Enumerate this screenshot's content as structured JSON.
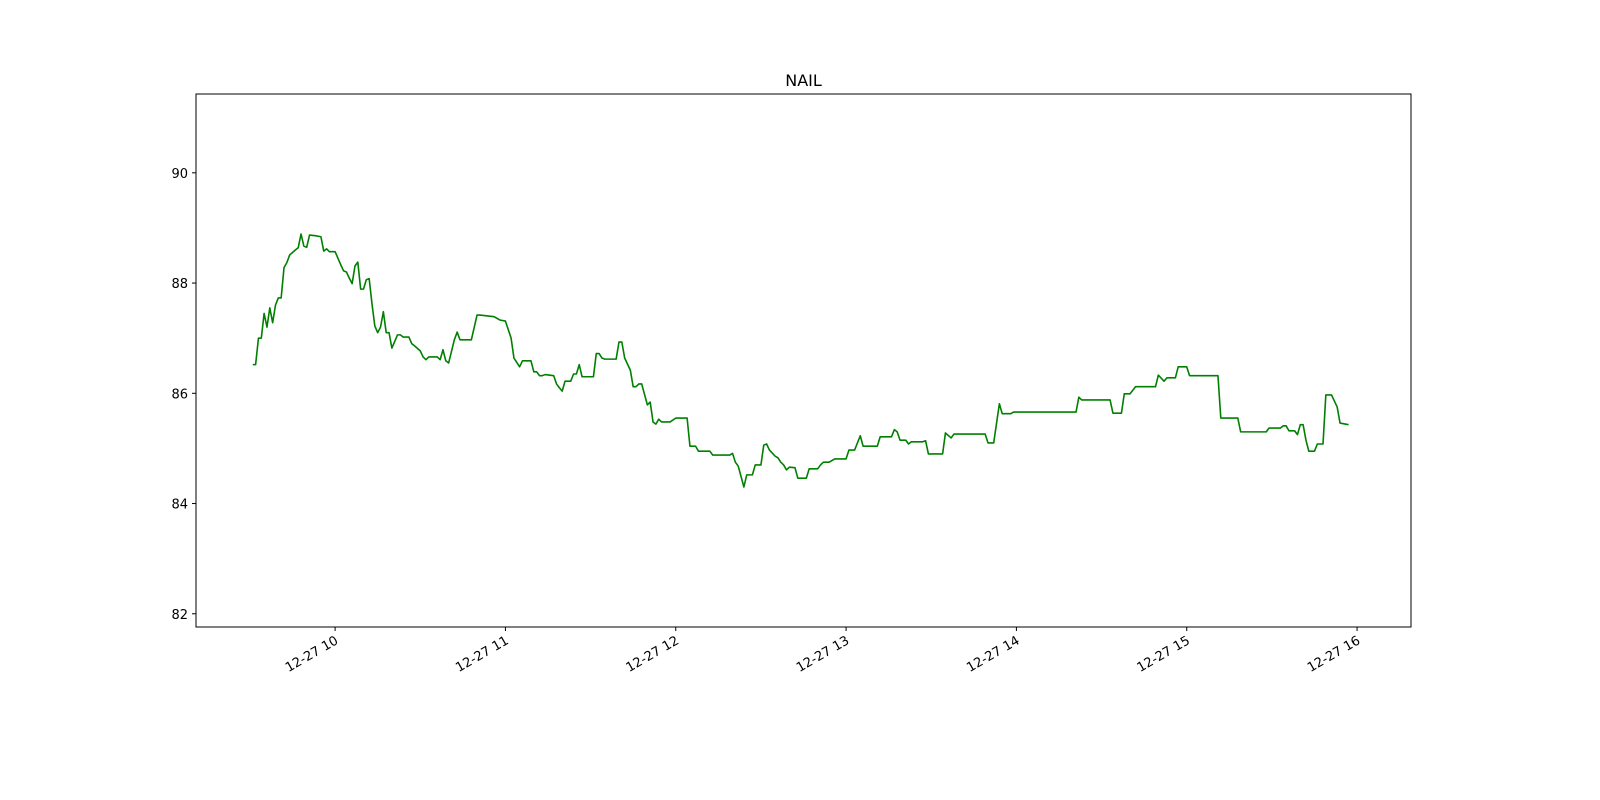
{
  "chart_data": {
    "type": "line",
    "title": "NAIL",
    "color": "green",
    "xlim": [
      "12-27 09:11",
      "12-27 16:19"
    ],
    "xticks": [
      "12-27 10",
      "12-27 11",
      "12-27 12",
      "12-27 13",
      "12-27 14",
      "12-27 15",
      "12-27 16"
    ],
    "ylim": [
      81.76,
      91.43
    ],
    "yticks": [
      82,
      84,
      86,
      88,
      90
    ],
    "grid": false,
    "x": [
      "12-27 09:31",
      "12-27 09:32",
      "12-27 09:33",
      "12-27 09:34",
      "12-27 09:35",
      "12-27 09:36",
      "12-27 09:37",
      "12-27 09:38",
      "12-27 09:39",
      "12-27 09:40",
      "12-27 09:41",
      "12-27 09:42",
      "12-27 09:43",
      "12-27 09:44",
      "12-27 09:46",
      "12-27 09:47",
      "12-27 09:48",
      "12-27 09:49",
      "12-27 09:50",
      "12-27 09:51",
      "12-27 09:53",
      "12-27 09:55",
      "12-27 09:56",
      "12-27 09:57",
      "12-27 09:58",
      "12-27 10:00",
      "12-27 10:02",
      "12-27 10:03",
      "12-27 10:04",
      "12-27 10:05",
      "12-27 10:06",
      "12-27 10:07",
      "12-27 10:08",
      "12-27 10:09",
      "12-27 10:10",
      "12-27 10:11",
      "12-27 10:12",
      "12-27 10:13",
      "12-27 10:14",
      "12-27 10:15",
      "12-27 10:16",
      "12-27 10:17",
      "12-27 10:18",
      "12-27 10:19",
      "12-27 10:20",
      "12-27 10:22",
      "12-27 10:23",
      "12-27 10:24",
      "12-27 10:26",
      "12-27 10:27",
      "12-27 10:28",
      "12-27 10:30",
      "12-27 10:31",
      "12-27 10:32",
      "12-27 10:33",
      "12-27 10:36",
      "12-27 10:37",
      "12-27 10:38",
      "12-27 10:39",
      "12-27 10:40",
      "12-27 10:42",
      "12-27 10:43",
      "12-27 10:44",
      "12-27 10:48",
      "12-27 10:50",
      "12-27 10:51",
      "12-27 10:56",
      "12-27 10:58",
      "12-27 11:00",
      "12-27 11:02",
      "12-27 11:03",
      "12-27 11:05",
      "12-27 11:06",
      "12-27 11:09",
      "12-27 11:10",
      "12-27 11:11",
      "12-27 11:12",
      "12-27 11:13",
      "12-27 11:14",
      "12-27 11:17",
      "12-27 11:18",
      "12-27 11:19",
      "12-27 11:20",
      "12-27 11:21",
      "12-27 11:23",
      "12-27 11:24",
      "12-27 11:25",
      "12-27 11:26",
      "12-27 11:27",
      "12-27 11:31",
      "12-27 11:32",
      "12-27 11:33",
      "12-27 11:34",
      "12-27 11:35",
      "12-27 11:39",
      "12-27 11:40",
      "12-27 11:41",
      "12-27 11:42",
      "12-27 11:44",
      "12-27 11:45",
      "12-27 11:46",
      "12-27 11:47",
      "12-27 11:48",
      "12-27 11:50",
      "12-27 11:51",
      "12-27 11:52",
      "12-27 11:53",
      "12-27 11:54",
      "12-27 11:55",
      "12-27 11:58",
      "12-27 12:00",
      "12-27 12:04",
      "12-27 12:05",
      "12-27 12:07",
      "12-27 12:08",
      "12-27 12:12",
      "12-27 12:13",
      "12-27 12:19",
      "12-27 12:20",
      "12-27 12:21",
      "12-27 12:22",
      "12-27 12:24",
      "12-27 12:25",
      "12-27 12:27",
      "12-27 12:28",
      "12-27 12:30",
      "12-27 12:31",
      "12-27 12:32",
      "12-27 12:33",
      "12-27 12:35",
      "12-27 12:36",
      "12-27 12:37",
      "12-27 12:38",
      "12-27 12:39",
      "12-27 12:40",
      "12-27 12:42",
      "12-27 12:43",
      "12-27 12:46",
      "12-27 12:47",
      "12-27 12:50",
      "12-27 12:51",
      "12-27 12:52",
      "12-27 12:54",
      "12-27 12:56",
      "12-27 13:00",
      "12-27 13:01",
      "12-27 13:03",
      "12-27 13:05",
      "12-27 13:06",
      "12-27 13:11",
      "12-27 13:12",
      "12-27 13:16",
      "12-27 13:17",
      "12-27 13:18",
      "12-27 13:19",
      "12-27 13:21",
      "12-27 13:22",
      "12-27 13:23",
      "12-27 13:27",
      "12-27 13:28",
      "12-27 13:29",
      "12-27 13:34",
      "12-27 13:35",
      "12-27 13:37",
      "12-27 13:38",
      "12-27 13:49",
      "12-27 13:50",
      "12-27 13:52",
      "12-27 13:54",
      "12-27 13:55",
      "12-27 13:58",
      "12-27 13:59",
      "12-27 14:21",
      "12-27 14:22",
      "12-27 14:23",
      "12-27 14:33",
      "12-27 14:34",
      "12-27 14:37",
      "12-27 14:38",
      "12-27 14:40",
      "12-27 14:42",
      "12-27 14:49",
      "12-27 14:50",
      "12-27 14:52",
      "12-27 14:53",
      "12-27 14:56",
      "12-27 14:57",
      "12-27 15:00",
      "12-27 15:01",
      "12-27 15:11",
      "12-27 15:12",
      "12-27 15:18",
      "12-27 15:19",
      "12-27 15:28",
      "12-27 15:29",
      "12-27 15:33",
      "12-27 15:34",
      "12-27 15:35",
      "12-27 15:36",
      "12-27 15:38",
      "12-27 15:39",
      "12-27 15:40",
      "12-27 15:41",
      "12-27 15:42",
      "12-27 15:43",
      "12-27 15:45",
      "12-27 15:46",
      "12-27 15:48",
      "12-27 15:49",
      "12-27 15:51",
      "12-27 15:53",
      "12-27 15:54",
      "12-27 15:57"
    ],
    "values": [
      86.52,
      86.52,
      87.0,
      87.0,
      87.45,
      87.2,
      87.55,
      87.28,
      87.6,
      87.73,
      87.73,
      88.28,
      88.37,
      88.51,
      88.6,
      88.64,
      88.89,
      88.67,
      88.65,
      88.87,
      88.86,
      88.84,
      88.58,
      88.62,
      88.57,
      88.57,
      88.33,
      88.22,
      88.2,
      88.09,
      87.99,
      88.31,
      88.38,
      87.89,
      87.89,
      88.06,
      88.08,
      87.62,
      87.22,
      87.1,
      87.2,
      87.48,
      87.1,
      87.1,
      86.82,
      87.06,
      87.06,
      87.02,
      87.02,
      86.9,
      86.86,
      86.77,
      86.66,
      86.61,
      86.66,
      86.66,
      86.61,
      86.79,
      86.59,
      86.55,
      86.97,
      87.11,
      86.97,
      86.97,
      87.42,
      87.42,
      87.39,
      87.33,
      87.31,
      87.0,
      86.64,
      86.48,
      86.59,
      86.59,
      86.39,
      86.39,
      86.32,
      86.32,
      86.34,
      86.32,
      86.17,
      86.1,
      86.04,
      86.22,
      86.22,
      86.35,
      86.35,
      86.52,
      86.3,
      86.3,
      86.72,
      86.72,
      86.64,
      86.62,
      86.62,
      86.93,
      86.93,
      86.64,
      86.42,
      86.12,
      86.12,
      86.17,
      86.17,
      85.79,
      85.84,
      85.48,
      85.44,
      85.53,
      85.48,
      85.48,
      85.55,
      85.55,
      85.04,
      85.04,
      84.95,
      84.95,
      84.88,
      84.88,
      84.91,
      84.75,
      84.68,
      84.3,
      84.52,
      84.52,
      84.7,
      84.7,
      85.06,
      85.08,
      84.97,
      84.86,
      84.83,
      84.75,
      84.7,
      84.61,
      84.66,
      84.65,
      84.46,
      84.46,
      84.63,
      84.63,
      84.7,
      84.75,
      84.75,
      84.81,
      84.81,
      84.97,
      84.97,
      85.23,
      85.04,
      85.04,
      85.21,
      85.21,
      85.34,
      85.3,
      85.15,
      85.15,
      85.08,
      85.12,
      85.12,
      85.14,
      84.9,
      84.9,
      85.28,
      85.19,
      85.26,
      85.26,
      85.1,
      85.1,
      85.81,
      85.63,
      85.63,
      85.66,
      85.66,
      85.93,
      85.88,
      85.88,
      85.64,
      85.64,
      85.99,
      85.99,
      86.12,
      86.12,
      86.33,
      86.22,
      86.28,
      86.28,
      86.48,
      86.48,
      86.32,
      86.32,
      85.55,
      85.55,
      85.3,
      85.3,
      85.37,
      85.37,
      85.41,
      85.41,
      85.32,
      85.32,
      85.25,
      85.43,
      85.43,
      85.15,
      84.95,
      84.95,
      85.08,
      85.08,
      85.97,
      85.97,
      85.75,
      85.46,
      85.43
    ]
  }
}
